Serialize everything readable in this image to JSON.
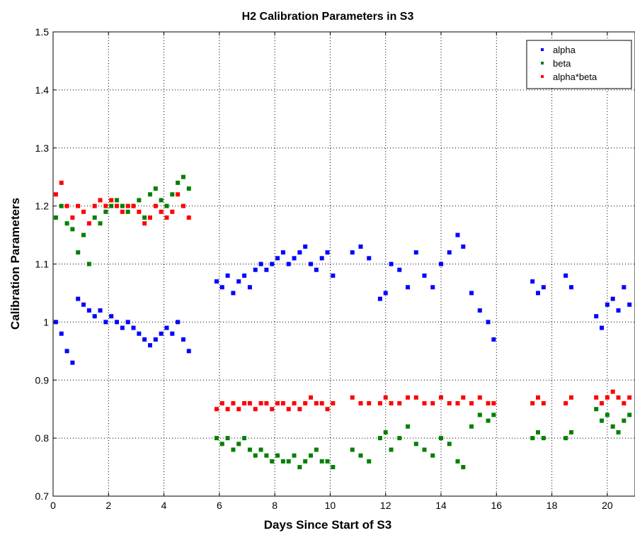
{
  "chart_data": {
    "type": "scatter",
    "title": "H2 Calibration Parameters in S3",
    "xlabel": "Days Since Start of S3",
    "ylabel": "Calibration Parameters",
    "xlim": [
      0,
      21
    ],
    "ylim": [
      0.7,
      1.5
    ],
    "xticks": [
      "0",
      "2",
      "4",
      "6",
      "8",
      "10",
      "12",
      "14",
      "16",
      "18",
      "20"
    ],
    "yticks": [
      "0.7",
      "0.8",
      "0.9",
      "1",
      "1.1",
      "1.2",
      "1.3",
      "1.4",
      "1.5"
    ],
    "grid": true,
    "legend_position": "top-right",
    "series": [
      {
        "name": "alpha",
        "color": "#0000ff",
        "x": [
          0.1,
          0.3,
          0.5,
          0.7,
          0.9,
          1.1,
          1.3,
          1.5,
          1.7,
          1.9,
          2.1,
          2.3,
          2.5,
          2.7,
          2.9,
          3.1,
          3.3,
          3.5,
          3.7,
          3.9,
          4.1,
          4.3,
          4.5,
          4.7,
          4.9,
          5.9,
          6.1,
          6.3,
          6.5,
          6.7,
          6.9,
          7.1,
          7.3,
          7.5,
          7.7,
          7.9,
          8.1,
          8.3,
          8.5,
          8.7,
          8.9,
          9.1,
          9.3,
          9.5,
          9.7,
          9.9,
          10.1,
          10.8,
          11.1,
          11.4,
          11.8,
          12.0,
          12.2,
          12.5,
          12.8,
          13.1,
          13.4,
          13.7,
          14.0,
          14.3,
          14.6,
          14.8,
          15.1,
          15.4,
          15.7,
          15.9,
          17.3,
          17.5,
          17.7,
          18.5,
          18.7,
          19.6,
          19.8,
          20.0,
          20.2,
          20.4,
          20.6,
          20.8
        ],
        "y": [
          1.0,
          0.98,
          0.95,
          0.93,
          1.04,
          1.03,
          1.02,
          1.01,
          1.02,
          1.0,
          1.01,
          1.0,
          0.99,
          1.0,
          0.99,
          0.98,
          0.97,
          0.96,
          0.97,
          0.98,
          0.99,
          0.98,
          1.0,
          0.97,
          0.95,
          1.07,
          1.06,
          1.08,
          1.05,
          1.07,
          1.08,
          1.06,
          1.09,
          1.1,
          1.09,
          1.1,
          1.11,
          1.12,
          1.1,
          1.11,
          1.12,
          1.13,
          1.1,
          1.09,
          1.11,
          1.12,
          1.08,
          1.12,
          1.13,
          1.11,
          1.04,
          1.05,
          1.1,
          1.09,
          1.06,
          1.12,
          1.08,
          1.06,
          1.1,
          1.12,
          1.15,
          1.13,
          1.05,
          1.02,
          1.0,
          0.97,
          1.07,
          1.05,
          1.06,
          1.08,
          1.06,
          1.01,
          0.99,
          1.03,
          1.04,
          1.02,
          1.06,
          1.03
        ]
      },
      {
        "name": "beta",
        "color": "#008000",
        "x": [
          0.1,
          0.3,
          0.5,
          0.7,
          0.9,
          1.1,
          1.3,
          1.5,
          1.7,
          1.9,
          2.1,
          2.3,
          2.5,
          2.7,
          2.9,
          3.1,
          3.3,
          3.5,
          3.7,
          3.9,
          4.1,
          4.3,
          4.5,
          4.7,
          4.9,
          5.9,
          6.1,
          6.3,
          6.5,
          6.7,
          6.9,
          7.1,
          7.3,
          7.5,
          7.7,
          7.9,
          8.1,
          8.3,
          8.5,
          8.7,
          8.9,
          9.1,
          9.3,
          9.5,
          9.7,
          9.9,
          10.1,
          10.8,
          11.1,
          11.4,
          11.8,
          12.0,
          12.2,
          12.5,
          12.8,
          13.1,
          13.4,
          13.7,
          14.0,
          14.3,
          14.6,
          14.8,
          15.1,
          15.4,
          15.7,
          15.9,
          17.3,
          17.5,
          17.7,
          18.5,
          18.7,
          19.6,
          19.8,
          20.0,
          20.2,
          20.4,
          20.6,
          20.8
        ],
        "y": [
          1.18,
          1.2,
          1.17,
          1.16,
          1.12,
          1.15,
          1.1,
          1.18,
          1.17,
          1.19,
          1.2,
          1.21,
          1.2,
          1.19,
          1.2,
          1.21,
          1.18,
          1.22,
          1.23,
          1.21,
          1.2,
          1.22,
          1.24,
          1.25,
          1.23,
          0.8,
          0.79,
          0.8,
          0.78,
          0.79,
          0.8,
          0.78,
          0.77,
          0.78,
          0.77,
          0.76,
          0.77,
          0.76,
          0.76,
          0.77,
          0.75,
          0.76,
          0.77,
          0.78,
          0.76,
          0.76,
          0.75,
          0.78,
          0.77,
          0.76,
          0.8,
          0.81,
          0.78,
          0.8,
          0.82,
          0.79,
          0.78,
          0.77,
          0.8,
          0.79,
          0.76,
          0.75,
          0.82,
          0.84,
          0.83,
          0.84,
          0.8,
          0.81,
          0.8,
          0.8,
          0.81,
          0.85,
          0.83,
          0.84,
          0.82,
          0.81,
          0.83,
          0.84
        ]
      },
      {
        "name": "alpha*beta",
        "color": "#ff0000",
        "x": [
          0.1,
          0.3,
          0.5,
          0.7,
          0.9,
          1.1,
          1.3,
          1.5,
          1.7,
          1.9,
          2.1,
          2.3,
          2.5,
          2.7,
          2.9,
          3.1,
          3.3,
          3.5,
          3.7,
          3.9,
          4.1,
          4.3,
          4.5,
          4.7,
          4.9,
          5.9,
          6.1,
          6.3,
          6.5,
          6.7,
          6.9,
          7.1,
          7.3,
          7.5,
          7.7,
          7.9,
          8.1,
          8.3,
          8.5,
          8.7,
          8.9,
          9.1,
          9.3,
          9.5,
          9.7,
          9.9,
          10.1,
          10.8,
          11.1,
          11.4,
          11.8,
          12.0,
          12.2,
          12.5,
          12.8,
          13.1,
          13.4,
          13.7,
          14.0,
          14.3,
          14.6,
          14.8,
          15.1,
          15.4,
          15.7,
          15.9,
          17.3,
          17.5,
          17.7,
          18.5,
          18.7,
          19.6,
          19.8,
          20.0,
          20.2,
          20.4,
          20.6,
          20.8
        ],
        "y": [
          1.22,
          1.24,
          1.2,
          1.18,
          1.2,
          1.19,
          1.17,
          1.2,
          1.21,
          1.2,
          1.21,
          1.2,
          1.19,
          1.2,
          1.2,
          1.19,
          1.17,
          1.18,
          1.2,
          1.19,
          1.18,
          1.19,
          1.22,
          1.2,
          1.18,
          0.85,
          0.86,
          0.85,
          0.86,
          0.85,
          0.86,
          0.86,
          0.85,
          0.86,
          0.86,
          0.85,
          0.86,
          0.86,
          0.85,
          0.86,
          0.85,
          0.86,
          0.87,
          0.86,
          0.86,
          0.85,
          0.86,
          0.87,
          0.86,
          0.86,
          0.86,
          0.87,
          0.86,
          0.86,
          0.87,
          0.87,
          0.86,
          0.86,
          0.87,
          0.86,
          0.86,
          0.87,
          0.86,
          0.87,
          0.86,
          0.86,
          0.86,
          0.87,
          0.86,
          0.86,
          0.87,
          0.87,
          0.86,
          0.87,
          0.88,
          0.87,
          0.86,
          0.87
        ]
      }
    ]
  }
}
